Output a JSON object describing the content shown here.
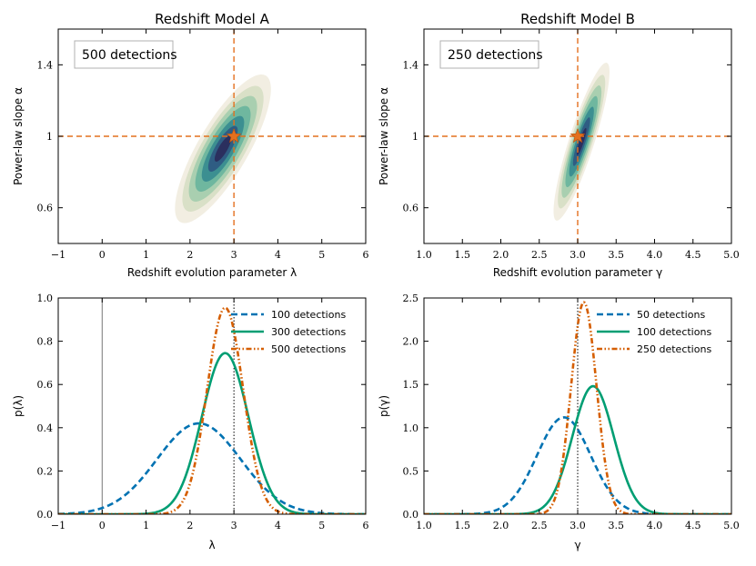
{
  "chart_data": [
    {
      "type": "contour",
      "title": "Redshift Model A",
      "xlabel": "Redshift evolution parameter λ",
      "ylabel": "Power-law slope α",
      "xlim": [
        -1,
        6
      ],
      "ylim": [
        0.4,
        1.6
      ],
      "xticks": [
        -1,
        0,
        1,
        2,
        3,
        4,
        5,
        6
      ],
      "xtick_labels": [
        "−1",
        "0",
        "1",
        "2",
        "3",
        "4",
        "5",
        "6"
      ],
      "yticks": [
        0.6,
        1.0,
        1.4
      ],
      "ytick_labels": [
        "0.6",
        "1",
        "1.4"
      ],
      "annotation": "500 detections",
      "truth": {
        "x": 3,
        "y": 1
      },
      "posterior": {
        "center_x": 2.75,
        "center_y": 0.93,
        "sigma_x": 0.42,
        "sigma_y": 0.16,
        "correlation": 0.8
      }
    },
    {
      "type": "contour",
      "title": "Redshift Model B",
      "xlabel": "Redshift evolution parameter γ",
      "ylabel": "Power-law slope α",
      "xlim": [
        1.0,
        5.0
      ],
      "ylim": [
        0.4,
        1.6
      ],
      "xticks": [
        1.0,
        1.5,
        2.0,
        2.5,
        3.0,
        3.5,
        4.0,
        4.5,
        5.0
      ],
      "xtick_labels": [
        "1.0",
        "1.5",
        "2.0",
        "2.5",
        "3.0",
        "3.5",
        "4.0",
        "4.5",
        "5.0"
      ],
      "yticks": [
        0.6,
        1.0,
        1.4
      ],
      "ytick_labels": [
        "0.6",
        "1",
        "1.4"
      ],
      "annotation": "250 detections",
      "truth": {
        "x": 3,
        "y": 1
      },
      "posterior": {
        "center_x": 3.05,
        "center_y": 0.97,
        "sigma_x": 0.14,
        "sigma_y": 0.17,
        "correlation": 0.88
      }
    },
    {
      "type": "line",
      "title": "",
      "xlabel": "λ",
      "ylabel": "p(λ)",
      "xlim": [
        -1,
        6
      ],
      "ylim": [
        0,
        1.0
      ],
      "xticks": [
        -1,
        0,
        1,
        2,
        3,
        4,
        5,
        6
      ],
      "xtick_labels": [
        "−1",
        "0",
        "1",
        "2",
        "3",
        "4",
        "5",
        "6"
      ],
      "yticks": [
        0,
        0.2,
        0.4,
        0.6,
        0.8,
        1.0
      ],
      "ytick_labels": [
        "0.0",
        "0.2",
        "0.4",
        "0.6",
        "0.8",
        "1.0"
      ],
      "truth_x": 3,
      "zero_line_x": 0,
      "legend_position": "top-right",
      "series": [
        {
          "name": "100 detections",
          "mean": 2.2,
          "peak": 0.42,
          "sigma": 0.95,
          "color": "#0072b2",
          "style": "dashed"
        },
        {
          "name": "300 detections",
          "mean": 2.8,
          "peak": 0.745,
          "sigma": 0.53,
          "color": "#009e73",
          "style": "solid"
        },
        {
          "name": "500 detections",
          "mean": 2.8,
          "peak": 0.955,
          "sigma": 0.41,
          "color": "#d55e00",
          "style": "dashdot"
        }
      ]
    },
    {
      "type": "line",
      "title": "",
      "xlabel": "γ",
      "ylabel": "p(γ)",
      "xlim": [
        1.0,
        5.0
      ],
      "ylim": [
        0,
        2.5
      ],
      "xticks": [
        1.0,
        1.5,
        2.0,
        2.5,
        3.0,
        3.5,
        4.0,
        4.5,
        5.0
      ],
      "xtick_labels": [
        "1.0",
        "1.5",
        "2.0",
        "2.5",
        "3.0",
        "3.5",
        "4.0",
        "4.5",
        "5.0"
      ],
      "yticks": [
        0,
        0.5,
        1.0,
        1.5,
        2.0,
        2.5
      ],
      "ytick_labels": [
        "0.0",
        "0.5",
        "1.0",
        "1.5",
        "2.0",
        "2.5"
      ],
      "truth_x": 3,
      "legend_position": "top-right",
      "series": [
        {
          "name": "50 detections",
          "mean": 2.82,
          "peak": 1.12,
          "sigma": 0.35,
          "color": "#0072b2",
          "style": "dashed"
        },
        {
          "name": "100 detections",
          "mean": 3.2,
          "peak": 1.48,
          "sigma": 0.27,
          "color": "#009e73",
          "style": "solid"
        },
        {
          "name": "250 detections",
          "mean": 3.08,
          "peak": 2.45,
          "sigma": 0.165,
          "color": "#d55e00",
          "style": "dashdot"
        }
      ]
    }
  ],
  "colors": {
    "contour_levels": [
      "#f2eee2",
      "#d9e0c7",
      "#a9cfb0",
      "#6fb79f",
      "#3c8f91",
      "#2f5d83",
      "#2b2f5e"
    ],
    "truth_line": "#e3701f",
    "truth_star": "#e3701f"
  }
}
